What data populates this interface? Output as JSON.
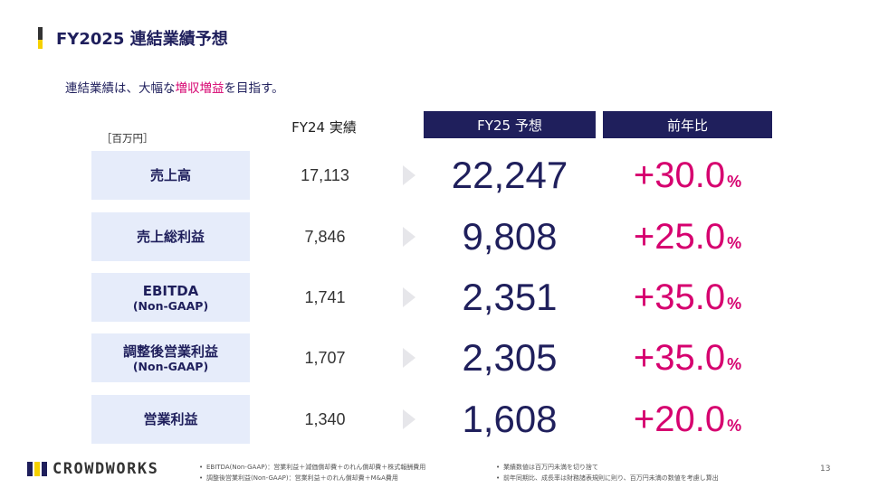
{
  "page_title": "FY2025 連結業績予想",
  "subtitle": {
    "before": "連結業績は、大幅な",
    "highlight": "増収増益",
    "after": "を目指す。"
  },
  "unit_label": "［百万円］",
  "columns": {
    "fy24": "FY24 実績",
    "fy25": "FY25 予想",
    "yoy": "前年比"
  },
  "rows": [
    {
      "label": "売上高",
      "sublabel": "",
      "fy24": "17,113",
      "fy25": "22,247",
      "yoy": "+30.0",
      "pct": "%"
    },
    {
      "label": "売上総利益",
      "sublabel": "",
      "fy24": "7,846",
      "fy25": "9,808",
      "yoy": "+25.0",
      "pct": "%"
    },
    {
      "label": "EBITDA",
      "sublabel": "(Non-GAAP)",
      "fy24": "1,741",
      "fy25": "2,351",
      "yoy": "+35.0",
      "pct": "%"
    },
    {
      "label": "調整後営業利益",
      "sublabel": "(Non-GAAP)",
      "fy24": "1,707",
      "fy25": "2,305",
      "yoy": "+35.0",
      "pct": "%"
    },
    {
      "label": "営業利益",
      "sublabel": "",
      "fy24": "1,340",
      "fy25": "1,608",
      "yoy": "+20.0",
      "pct": "%"
    }
  ],
  "logo": {
    "text": "CROWDWORKS",
    "colors": [
      "#1f1f5c",
      "#f5d000",
      "#1f1f5c"
    ]
  },
  "notes_left": [
    "EBITDA(Non-GAAP)：営業利益＋減価償却費＋のれん償却費＋株式報酬費用",
    "調整後営業利益(Non-GAAP)：営業利益＋のれん償却費＋M&A費用"
  ],
  "notes_right": [
    "業績数値は百万円未満を切り捨て",
    "前年同期比、成長率は財務諸表規則に則り、百万円未満の数値を考慮し算出"
  ],
  "page_number": "13",
  "colors": {
    "navy": "#1f1f5c",
    "accent": "#d6006f",
    "label_bg": "#e6ecfa"
  }
}
